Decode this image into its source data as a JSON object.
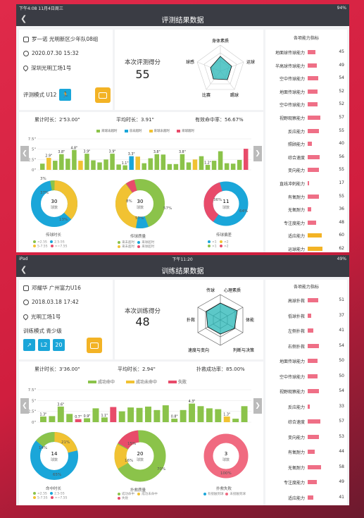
{
  "s1": {
    "status_left": "下午4:08  11月4日周三",
    "status_right": "94%",
    "title": "评测结果数据",
    "name": "罗一诺  光明新区少年队08组",
    "date": "2020.07.30 15:32",
    "location": "深圳光明工场1号",
    "mode_label": "评测模式  U12",
    "score_title": "本次评测得分",
    "score": "55",
    "radar_labels": [
      "身体素质",
      "运球",
      "踢球",
      "比赛",
      "球感"
    ],
    "stats": {
      "total": "累计时长：2'53.00\"",
      "avg": "平均时长：3.91\"",
      "rate": "有效命中率：56.67%"
    },
    "legend": [
      "来球未超时",
      "非未超时",
      "来球未超时",
      "来球超时"
    ],
    "pie_titles": [
      "传球时长",
      "传球质量",
      "传球偏差"
    ],
    "pie_centers": [
      [
        "30",
        "球数"
      ],
      [
        "30",
        "球数"
      ],
      [
        "11",
        "球数"
      ]
    ],
    "pie_pcts": [
      "3%",
      "37%",
      "13%",
      "8%",
      "57%",
      "36%",
      "64%"
    ],
    "pie_legends": [
      "<2.5S",
      "2.5-5S",
      "5-7.5S",
      ">=7.5S",
      "来未超时",
      "来球超时",
      "来未超时",
      "来球超时",
      "<1",
      "<2",
      ">1",
      ">2"
    ],
    "abil_title": "各项能力指标",
    "abilities": [
      [
        "地面球传球能力",
        "45",
        0.34
      ],
      [
        "半高球传球能力",
        "49",
        0.4
      ],
      [
        "空中传球能力",
        "54",
        0.48
      ],
      [
        "地面传球能力",
        "52",
        0.45
      ],
      [
        "空中传球能力",
        "52",
        0.45
      ],
      [
        "视野观察能力",
        "57",
        0.55
      ],
      [
        "反应能力",
        "55",
        0.5
      ],
      [
        "照顾能力",
        "40",
        0.2
      ],
      [
        "综合速度",
        "56",
        0.52
      ],
      [
        "变向能力",
        "55",
        0.5
      ],
      [
        "直线冲刺能力",
        "17",
        0.0
      ],
      [
        "有氧耐力",
        "55",
        0.5
      ],
      [
        "无氧耐力",
        "36",
        0.15
      ],
      [
        "专注度能力",
        "48",
        0.38
      ],
      [
        "适应能力",
        "60",
        0.62
      ],
      [
        "运球能力",
        "62",
        0.66
      ]
    ]
  },
  "s2": {
    "status_left": "iPad",
    "status_center": "下午11:20",
    "status_right": "49%",
    "title": "训练结果数据",
    "name": "邓耀华  广州富力U16",
    "date": "2018.03.18 17:42",
    "location": "光明工场1号",
    "mode_label": "训练模式  青少级",
    "badges": [
      "L2",
      "20"
    ],
    "score_title": "本次训练得分",
    "score": "48",
    "radar_labels": [
      "心理素质",
      "体能",
      "判断与决策",
      "速度与变向",
      "扑救",
      "传球"
    ],
    "stats": {
      "total": "累计时长：3'36.00\"",
      "avg": "平均时长：2.94\"",
      "rate": "扑救成功率：85.00%"
    },
    "legend": [
      "成功命中",
      "成功未命中",
      "失败"
    ],
    "pie_titles": [
      "命中时长",
      "扑救质量",
      "扑救失败"
    ],
    "pie_centers": [
      [
        "14",
        "球数"
      ],
      [
        "20",
        "球数"
      ],
      [
        "3",
        "球数"
      ]
    ],
    "pie_pcts": [
      "14%",
      "21%",
      "65%",
      "15%",
      "16%",
      "70%",
      "100%"
    ],
    "pie_legends": [
      "<2.5S",
      "2.5-5S",
      "5-7.5S",
      ">=7.5S",
      "成功命中",
      "成功未命中",
      "失败",
      "有接触到球",
      "未接触到球"
    ],
    "abil_title": "各项能力指标",
    "abilities": [
      [
        "高球扑救",
        "51",
        0.46
      ],
      [
        "低球扑救",
        "37",
        0.17
      ],
      [
        "左侧扑救",
        "41",
        0.25
      ],
      [
        "右侧扑救",
        "54",
        0.5
      ],
      [
        "地面传球能力",
        "50",
        0.43
      ],
      [
        "空中传球能力",
        "50",
        0.43
      ],
      [
        "视野观察能力",
        "54",
        0.5
      ],
      [
        "反应能力",
        "33",
        0.1
      ],
      [
        "综合速度",
        "57",
        0.56
      ],
      [
        "变向能力",
        "53",
        0.49
      ],
      [
        "有氧耐力",
        "44",
        0.31
      ],
      [
        "无氧耐力",
        "58",
        0.58
      ],
      [
        "专注度能力",
        "49",
        0.41
      ],
      [
        "适应能力",
        "41",
        0.25
      ]
    ]
  },
  "chart_data": [
    {
      "type": "bar",
      "title": "",
      "ylabel": "",
      "ylim": [
        0,
        7.5
      ],
      "y_ticks": [
        "7.5\"",
        "5\"",
        "2.5\"",
        "0\""
      ],
      "series": [
        {
          "name": "来球未超时",
          "color": "#8bc34a"
        },
        {
          "name": "来球超时",
          "color": "#e84b6a"
        }
      ],
      "values": [
        1.5,
        2.9,
        2.2,
        3.8,
        2.7,
        4.8,
        2.2,
        3.9,
        2.3,
        1.8,
        2.5,
        3.9,
        1.3,
        1.1,
        3.3,
        3.2,
        1.6,
        2.8,
        3.8,
        3.7,
        1.4,
        1.4,
        3.8,
        1.8,
        2.5,
        3.3,
        1.2,
        2.2,
        4.5,
        1.6,
        1.5,
        2.4,
        5.1
      ],
      "colors": [
        "g",
        "y",
        "g",
        "g",
        "g",
        "g",
        "y",
        "g",
        "g",
        "g",
        "g",
        "g",
        "g",
        "g",
        "b",
        "y",
        "g",
        "g",
        "g",
        "g",
        "g",
        "g",
        "g",
        "g",
        "y",
        "g",
        "g",
        "g",
        "g",
        "g",
        "g",
        "g",
        "r"
      ],
      "labels": [
        "",
        "2.9\"",
        "",
        "3.8\"",
        "",
        "4.8\"",
        "",
        "3.9\"",
        "",
        "",
        "",
        "3.9\"",
        "",
        "1.1\"",
        "3.3\"",
        "",
        "",
        "",
        "3.8\"",
        "",
        "",
        "",
        "3.8\"",
        "",
        "",
        "",
        "1.2\"",
        "",
        "",
        "",
        "",
        "",
        ""
      ]
    },
    {
      "type": "bar",
      "title": "",
      "ylabel": "",
      "ylim": [
        0,
        7.5
      ],
      "y_ticks": [
        "7.5\"",
        "5\"",
        "2.5\"",
        "0\""
      ],
      "series": [
        {
          "name": "成功命中",
          "color": "#8bc34a"
        },
        {
          "name": "成功未命中",
          "color": "#f1c232"
        },
        {
          "name": "失败",
          "color": "#e84b6a"
        }
      ],
      "values": [
        1.3,
        1.4,
        3.6,
        1.9,
        0.7,
        0.9,
        3.2,
        1.1,
        3.5,
        2.5,
        3.4,
        3.3,
        3.6,
        2.8,
        3.9,
        0.8,
        2.8,
        4.3,
        3.7,
        3.2,
        3.0,
        1.3,
        0.8,
        3.7
      ],
      "colors": [
        "g",
        "g",
        "g",
        "g",
        "r",
        "g",
        "g",
        "g",
        "r",
        "g",
        "g",
        "g",
        "g",
        "g",
        "g",
        "g",
        "g",
        "g",
        "g",
        "g",
        "g",
        "y",
        "g",
        "g"
      ],
      "labels": [
        "1.3\"",
        "",
        "3.6\"",
        "",
        "0.7\"",
        "0.9\"",
        "",
        "1.1\"",
        "",
        "",
        "",
        "",
        "",
        "",
        "",
        "0.8\"",
        "",
        "4.3\"",
        "",
        "",
        "",
        "1.3\"",
        "",
        ""
      ]
    }
  ]
}
